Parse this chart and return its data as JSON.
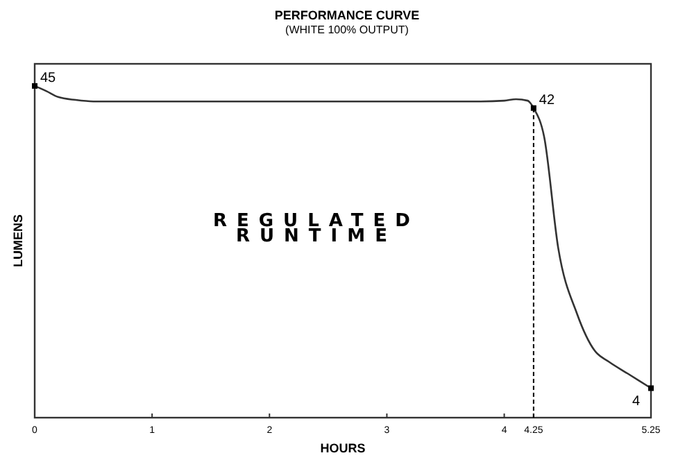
{
  "chart_data": {
    "type": "line",
    "title": "PERFORMANCE CURVE",
    "subtitle": "(WHITE 100% OUTPUT)",
    "xlabel": "HOURS",
    "ylabel": "LUMENS",
    "annotations": [
      "REGULATED RUNTIME"
    ],
    "xlim": [
      0,
      5.25
    ],
    "xticks": [
      0,
      1,
      2,
      3,
      4,
      4.25,
      5.25
    ],
    "ylim": [
      0,
      48
    ],
    "tick_labels": "x",
    "grid": false,
    "ref_lines": [
      {
        "axis": "x",
        "value": 4.25,
        "line_style": "dashed"
      }
    ],
    "series": [
      {
        "color": "#333333",
        "x": [
          0,
          0.1,
          0.2,
          0.35,
          0.5,
          1,
          2,
          3,
          3.8,
          4.0,
          4.1,
          4.2,
          4.25,
          4.34,
          4.46,
          4.62,
          4.77,
          4.89,
          5.05,
          5.25
        ],
        "values": [
          45,
          44.3,
          43.5,
          43.1,
          42.9,
          42.9,
          42.9,
          42.9,
          42.9,
          43.0,
          43.2,
          43.0,
          42,
          38.1,
          23,
          14.1,
          9.1,
          7.6,
          6.0,
          4
        ],
        "value_labels": [
          "45",
          null,
          null,
          null,
          null,
          null,
          null,
          null,
          null,
          null,
          null,
          null,
          "42",
          null,
          null,
          null,
          null,
          null,
          null,
          "4"
        ]
      }
    ]
  }
}
